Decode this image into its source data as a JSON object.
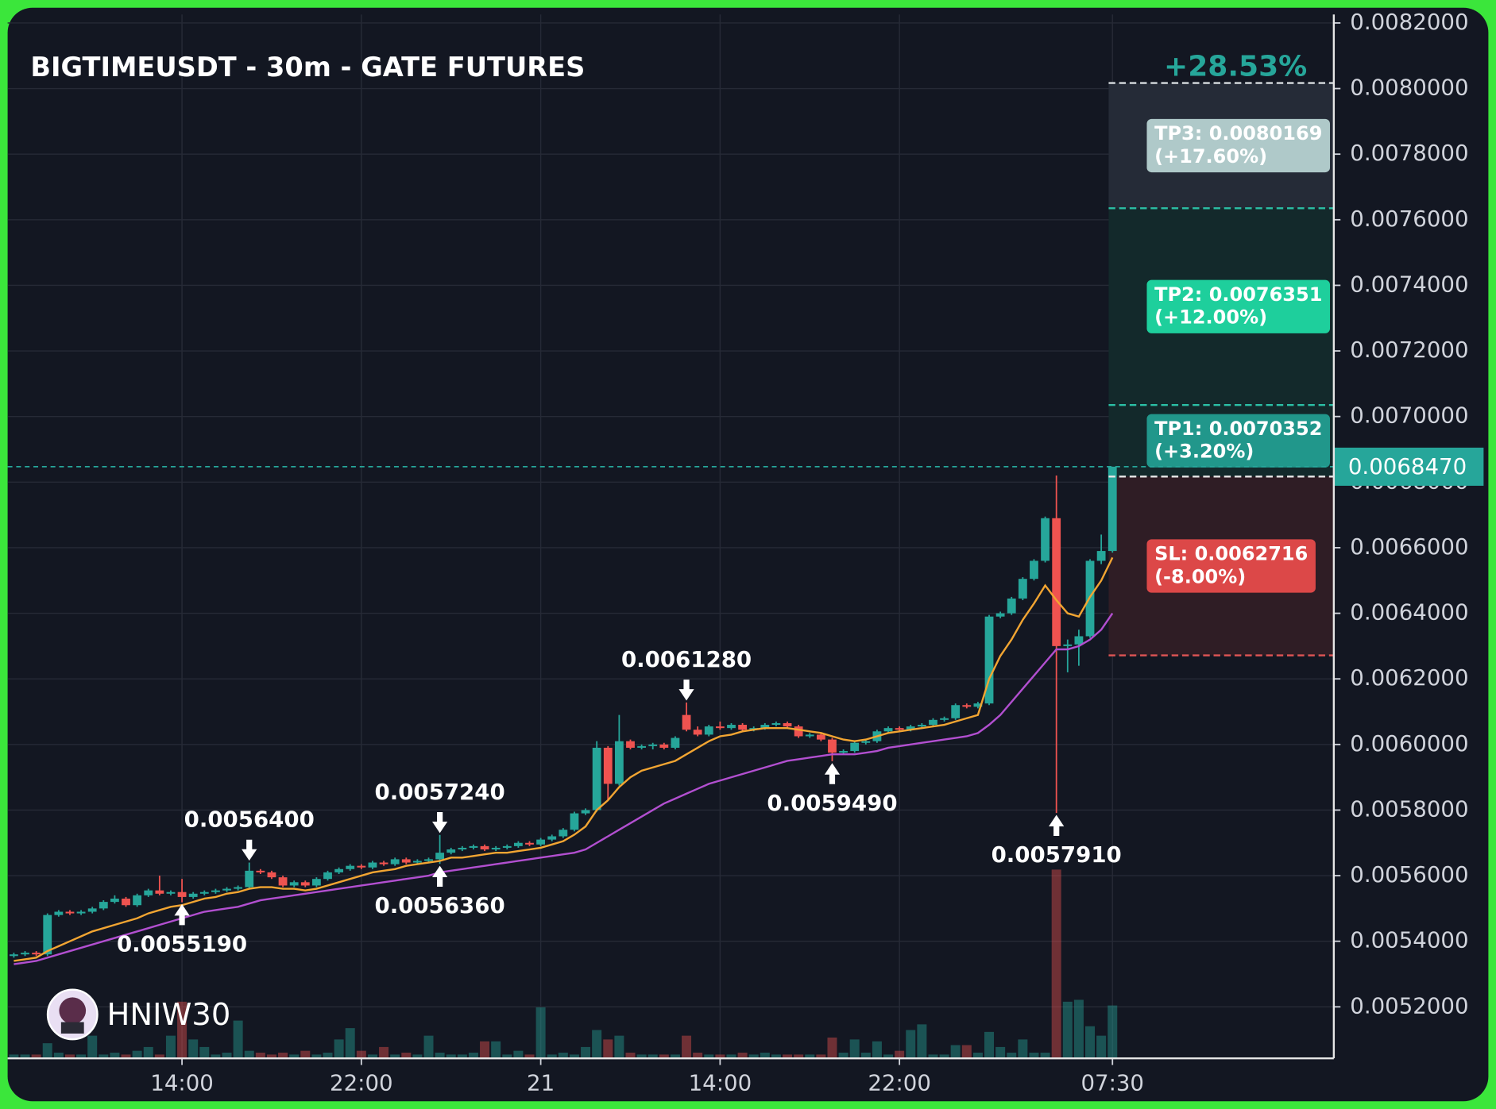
{
  "chart_data": {
    "type": "candlestick",
    "title": "BIGTIMEUSDT - 30m - GATE FUTURES",
    "watermark": "HNIW30",
    "categories": [
      null,
      null,
      null,
      null,
      null,
      null,
      null,
      null,
      null,
      null,
      null,
      null,
      null,
      null,
      null,
      "14:00",
      null,
      null,
      null,
      null,
      null,
      null,
      null,
      null,
      null,
      null,
      null,
      null,
      null,
      null,
      null,
      "22:00",
      null,
      null,
      null,
      null,
      null,
      null,
      null,
      null,
      null,
      null,
      null,
      null,
      null,
      null,
      null,
      "21",
      null,
      null,
      null,
      null,
      null,
      null,
      null,
      null,
      null,
      null,
      null,
      null,
      null,
      null,
      null,
      "14:00",
      null,
      null,
      null,
      null,
      null,
      null,
      null,
      null,
      null,
      null,
      null,
      null,
      null,
      null,
      null,
      "22:00",
      null,
      null,
      null,
      null,
      null,
      null,
      null,
      null,
      null,
      null,
      null,
      null,
      null,
      null,
      null,
      null,
      null,
      null,
      "07:30"
    ],
    "ohlc": [
      [
        0.005355,
        0.005365,
        0.00535,
        0.00536
      ],
      [
        0.00536,
        0.00537,
        0.005355,
        0.005365
      ],
      [
        0.005365,
        0.00537,
        0.005355,
        0.00536
      ],
      [
        0.00536,
        0.005485,
        0.005355,
        0.00548
      ],
      [
        0.00548,
        0.005495,
        0.005475,
        0.00549
      ],
      [
        0.00549,
        0.005495,
        0.00548,
        0.005485
      ],
      [
        0.005485,
        0.005495,
        0.00548,
        0.00549
      ],
      [
        0.00549,
        0.005505,
        0.005485,
        0.0055
      ],
      [
        0.0055,
        0.005525,
        0.005495,
        0.00552
      ],
      [
        0.00552,
        0.00554,
        0.005515,
        0.00553
      ],
      [
        0.00553,
        0.005535,
        0.005505,
        0.00551
      ],
      [
        0.00551,
        0.005545,
        0.005505,
        0.00554
      ],
      [
        0.00554,
        0.00556,
        0.005535,
        0.005555
      ],
      [
        0.005555,
        0.0056,
        0.00554,
        0.005545
      ],
      [
        0.005545,
        0.005555,
        0.00554,
        0.00555
      ],
      [
        0.00555,
        0.00559,
        0.005519,
        0.005535
      ],
      [
        0.005535,
        0.00555,
        0.00553,
        0.005545
      ],
      [
        0.005545,
        0.005555,
        0.00554,
        0.00555
      ],
      [
        0.00555,
        0.00556,
        0.005545,
        0.005555
      ],
      [
        0.005555,
        0.005565,
        0.00555,
        0.00556
      ],
      [
        0.00556,
        0.00557,
        0.005555,
        0.005565
      ],
      [
        0.005565,
        0.00564,
        0.00556,
        0.005615
      ],
      [
        0.005615,
        0.00562,
        0.005605,
        0.00561
      ],
      [
        0.00561,
        0.005615,
        0.00559,
        0.005595
      ],
      [
        0.005595,
        0.0056,
        0.005565,
        0.00557
      ],
      [
        0.00557,
        0.005585,
        0.005565,
        0.00558
      ],
      [
        0.00558,
        0.005585,
        0.005565,
        0.00557
      ],
      [
        0.00557,
        0.005595,
        0.005565,
        0.00559
      ],
      [
        0.00559,
        0.005615,
        0.005585,
        0.00561
      ],
      [
        0.00561,
        0.005625,
        0.005605,
        0.00562
      ],
      [
        0.00562,
        0.005635,
        0.005615,
        0.00563
      ],
      [
        0.00563,
        0.005635,
        0.00562,
        0.005625
      ],
      [
        0.005625,
        0.005645,
        0.00562,
        0.00564
      ],
      [
        0.00564,
        0.005645,
        0.00563,
        0.005635
      ],
      [
        0.005635,
        0.005655,
        0.00563,
        0.00565
      ],
      [
        0.00565,
        0.005655,
        0.005635,
        0.00564
      ],
      [
        0.00564,
        0.00565,
        0.005635,
        0.005645
      ],
      [
        0.005645,
        0.005655,
        0.00564,
        0.00565
      ],
      [
        0.00565,
        0.005724,
        0.005636,
        0.00567
      ],
      [
        0.00567,
        0.005685,
        0.005665,
        0.00568
      ],
      [
        0.00568,
        0.00569,
        0.005675,
        0.005685
      ],
      [
        0.005685,
        0.005695,
        0.00568,
        0.00569
      ],
      [
        0.00569,
        0.005695,
        0.005675,
        0.00568
      ],
      [
        0.00568,
        0.00569,
        0.005675,
        0.005685
      ],
      [
        0.005685,
        0.005695,
        0.00568,
        0.00569
      ],
      [
        0.00569,
        0.005705,
        0.005685,
        0.0057
      ],
      [
        0.0057,
        0.005705,
        0.00569,
        0.005695
      ],
      [
        0.005695,
        0.005715,
        0.00569,
        0.00571
      ],
      [
        0.00571,
        0.005725,
        0.005705,
        0.00572
      ],
      [
        0.00572,
        0.005745,
        0.005715,
        0.00574
      ],
      [
        0.00574,
        0.005795,
        0.005735,
        0.00579
      ],
      [
        0.00579,
        0.005805,
        0.005785,
        0.0058
      ],
      [
        0.0058,
        0.00601,
        0.005795,
        0.00599
      ],
      [
        0.00599,
        0.005995,
        0.00583,
        0.00588
      ],
      [
        0.00588,
        0.00609,
        0.005875,
        0.00601
      ],
      [
        0.00601,
        0.006015,
        0.005985,
        0.00599
      ],
      [
        0.00599,
        0.006,
        0.005985,
        0.005995
      ],
      [
        0.005995,
        0.006005,
        0.005985,
        0.006
      ],
      [
        0.006,
        0.006005,
        0.005985,
        0.00599
      ],
      [
        0.00599,
        0.006025,
        0.005985,
        0.00602
      ],
      [
        0.00609,
        0.006128,
        0.00604,
        0.006045
      ],
      [
        0.006045,
        0.006055,
        0.006025,
        0.00603
      ],
      [
        0.00603,
        0.00606,
        0.006025,
        0.006055
      ],
      [
        0.006055,
        0.00607,
        0.006045,
        0.00605
      ],
      [
        0.00605,
        0.006065,
        0.006045,
        0.00606
      ],
      [
        0.00606,
        0.006065,
        0.00604,
        0.006045
      ],
      [
        0.006045,
        0.006055,
        0.00604,
        0.00605
      ],
      [
        0.00605,
        0.006065,
        0.006045,
        0.00606
      ],
      [
        0.00606,
        0.00607,
        0.006055,
        0.006065
      ],
      [
        0.006065,
        0.00607,
        0.00605,
        0.006055
      ],
      [
        0.006055,
        0.00606,
        0.00602,
        0.006025
      ],
      [
        0.006025,
        0.006035,
        0.00602,
        0.00603
      ],
      [
        0.00603,
        0.006035,
        0.00601,
        0.006015
      ],
      [
        0.006015,
        0.00602,
        0.005949,
        0.005975
      ],
      [
        0.005975,
        0.005985,
        0.00597,
        0.00598
      ],
      [
        0.00598,
        0.00601,
        0.005975,
        0.006005
      ],
      [
        0.006005,
        0.006015,
        0.006,
        0.00601
      ],
      [
        0.00601,
        0.006045,
        0.006005,
        0.00604
      ],
      [
        0.00604,
        0.006055,
        0.006035,
        0.00605
      ],
      [
        0.00605,
        0.006055,
        0.00604,
        0.006045
      ],
      [
        0.006045,
        0.00606,
        0.00604,
        0.006055
      ],
      [
        0.006055,
        0.006065,
        0.00605,
        0.00606
      ],
      [
        0.00606,
        0.00608,
        0.006055,
        0.006075
      ],
      [
        0.006075,
        0.006085,
        0.00607,
        0.00608
      ],
      [
        0.00608,
        0.006125,
        0.006075,
        0.00612
      ],
      [
        0.00612,
        0.006125,
        0.00611,
        0.006115
      ],
      [
        0.006115,
        0.00613,
        0.00611,
        0.006125
      ],
      [
        0.006125,
        0.006395,
        0.00612,
        0.00639
      ],
      [
        0.00639,
        0.006405,
        0.006385,
        0.0064
      ],
      [
        0.0064,
        0.00645,
        0.006395,
        0.006445
      ],
      [
        0.006445,
        0.00651,
        0.00644,
        0.006505
      ],
      [
        0.006505,
        0.006565,
        0.0065,
        0.00656
      ],
      [
        0.00656,
        0.006695,
        0.006555,
        0.00669
      ],
      [
        0.00669,
        0.00682,
        0.005791,
        0.0063
      ],
      [
        0.0063,
        0.00632,
        0.00622,
        0.006305
      ],
      [
        0.006305,
        0.00635,
        0.00624,
        0.00633
      ],
      [
        0.00633,
        0.006565,
        0.006325,
        0.00656
      ],
      [
        0.00656,
        0.00664,
        0.00655,
        0.00659
      ],
      [
        0.00659,
        0.006847,
        0.006585,
        0.006847
      ]
    ],
    "volumes": [
      2,
      2,
      2,
      8,
      3,
      2,
      2,
      12,
      2,
      3,
      2,
      4,
      6,
      2,
      12,
      30,
      10,
      6,
      2,
      3,
      20,
      4,
      3,
      2,
      3,
      2,
      4,
      2,
      3,
      10,
      16,
      4,
      2,
      6,
      2,
      3,
      2,
      12,
      3,
      2,
      2,
      3,
      9,
      9,
      2,
      4,
      2,
      27,
      2,
      3,
      2,
      6,
      15,
      10,
      12,
      3,
      2,
      2,
      2,
      2,
      12,
      3,
      2,
      2,
      2,
      3,
      2,
      3,
      2,
      2,
      2,
      2,
      2,
      11,
      3,
      10,
      3,
      9,
      2,
      4,
      15,
      18,
      2,
      2,
      7,
      7,
      3,
      14,
      6,
      3,
      10,
      3,
      3,
      100,
      30,
      31,
      17,
      12,
      28
    ],
    "up_color": "#26a69a",
    "down_color": "#ef5350",
    "ma_lines": [
      {
        "color": "#f2a532",
        "values": [
          0.00534,
          0.005345,
          0.00535,
          0.00537,
          0.005385,
          0.0054,
          0.005415,
          0.00543,
          0.00544,
          0.00545,
          0.00546,
          0.00547,
          0.005485,
          0.005495,
          0.005505,
          0.00551,
          0.00552,
          0.00553,
          0.005535,
          0.005545,
          0.00555,
          0.00556,
          0.005565,
          0.005565,
          0.00556,
          0.00556,
          0.005555,
          0.00556,
          0.00557,
          0.00558,
          0.00559,
          0.0056,
          0.00561,
          0.005615,
          0.00562,
          0.00563,
          0.005635,
          0.00564,
          0.005645,
          0.005655,
          0.005655,
          0.00566,
          0.005665,
          0.00567,
          0.00567,
          0.005675,
          0.00568,
          0.005685,
          0.005695,
          0.005705,
          0.005725,
          0.00575,
          0.0058,
          0.00583,
          0.00587,
          0.0059,
          0.00592,
          0.00593,
          0.00594,
          0.00595,
          0.00597,
          0.00599,
          0.00601,
          0.006025,
          0.00603,
          0.00604,
          0.006045,
          0.00605,
          0.00605,
          0.00605,
          0.006045,
          0.00604,
          0.006035,
          0.006025,
          0.006015,
          0.00601,
          0.006015,
          0.006025,
          0.006035,
          0.00604,
          0.006045,
          0.00605,
          0.006055,
          0.00606,
          0.00607,
          0.00608,
          0.00609,
          0.0062,
          0.00627,
          0.00632,
          0.00638,
          0.00643,
          0.006485,
          0.00644,
          0.0064,
          0.00639,
          0.00645,
          0.0065,
          0.00657
        ]
      },
      {
        "color": "#b24fd0",
        "values": [
          0.00533,
          0.005335,
          0.00534,
          0.00535,
          0.00536,
          0.00537,
          0.00538,
          0.00539,
          0.0054,
          0.00541,
          0.00542,
          0.00543,
          0.00544,
          0.00545,
          0.00546,
          0.00547,
          0.00548,
          0.00549,
          0.005495,
          0.0055,
          0.005505,
          0.005515,
          0.005525,
          0.00553,
          0.005535,
          0.00554,
          0.005545,
          0.00555,
          0.005555,
          0.00556,
          0.005565,
          0.00557,
          0.005575,
          0.00558,
          0.005585,
          0.00559,
          0.005595,
          0.0056,
          0.00561,
          0.005615,
          0.00562,
          0.005625,
          0.00563,
          0.005635,
          0.00564,
          0.005645,
          0.00565,
          0.005655,
          0.00566,
          0.005665,
          0.00567,
          0.00568,
          0.0057,
          0.00572,
          0.00574,
          0.00576,
          0.00578,
          0.0058,
          0.00582,
          0.005835,
          0.00585,
          0.005865,
          0.00588,
          0.00589,
          0.0059,
          0.00591,
          0.00592,
          0.00593,
          0.00594,
          0.00595,
          0.005955,
          0.00596,
          0.005965,
          0.00597,
          0.00597,
          0.00597,
          0.005975,
          0.00598,
          0.00599,
          0.005995,
          0.006,
          0.006005,
          0.00601,
          0.006015,
          0.00602,
          0.006025,
          0.006035,
          0.00606,
          0.00609,
          0.00613,
          0.00617,
          0.00621,
          0.00625,
          0.00629,
          0.00629,
          0.0063,
          0.00632,
          0.00635,
          0.0064
        ]
      }
    ],
    "ylim": [
      0.005043,
      0.008226
    ],
    "yticks": [
      {
        "value": 0.0052,
        "label": "0.0052000"
      },
      {
        "value": 0.0054,
        "label": "0.0054000"
      },
      {
        "value": 0.0056,
        "label": "0.0056000"
      },
      {
        "value": 0.0058,
        "label": "0.0058000"
      },
      {
        "value": 0.006,
        "label": "0.0060000"
      },
      {
        "value": 0.0062,
        "label": "0.0062000"
      },
      {
        "value": 0.0064,
        "label": "0.0064000"
      },
      {
        "value": 0.0066,
        "label": "0.0066000"
      },
      {
        "value": 0.0068,
        "label": "0.0068000"
      },
      {
        "value": 0.007,
        "label": "0.0070000"
      },
      {
        "value": 0.0072,
        "label": "0.0072000"
      },
      {
        "value": 0.0074,
        "label": "0.0074000"
      },
      {
        "value": 0.0076,
        "label": "0.0076000"
      },
      {
        "value": 0.0078,
        "label": "0.0078000"
      },
      {
        "value": 0.008,
        "label": "0.0080000"
      },
      {
        "value": 0.0082,
        "label": "0.0082000"
      }
    ],
    "grid": true,
    "last_price": {
      "value": 0.006847,
      "label": "0.0068470"
    },
    "annotations": [
      {
        "candle": 21,
        "value": 0.00564,
        "label": "0.0056400",
        "position": "above"
      },
      {
        "candle": 15,
        "value": 0.005519,
        "label": "0.0055190",
        "position": "below"
      },
      {
        "candle": 38,
        "value": 0.005724,
        "label": "0.0057240",
        "position": "above"
      },
      {
        "candle": 38,
        "value": 0.005636,
        "label": "0.0056360",
        "position": "below"
      },
      {
        "candle": 60,
        "value": 0.006128,
        "label": "0.0061280",
        "position": "above"
      },
      {
        "candle": 73,
        "value": 0.005949,
        "label": "0.0059490",
        "position": "below"
      },
      {
        "candle": 93,
        "value": 0.005791,
        "label": "0.0057910",
        "position": "below"
      }
    ],
    "position": {
      "total_change": "+28.53%",
      "entry": 0.006817,
      "take_profits": [
        {
          "value": 0.0080169,
          "label": "TP3: 0.0080169",
          "change": "(+17.60%)",
          "color": "#afc9c9",
          "line_color": "#d8dde0"
        },
        {
          "value": 0.0076351,
          "label": "TP2: 0.0076351",
          "change": "(+12.00%)",
          "color": "#1ecf9c",
          "line_color": "#2bbfa5"
        },
        {
          "value": 0.0070352,
          "label": "TP1: 0.0070352",
          "change": "(+3.20%)",
          "color": "#21978b",
          "line_color": "#2bbfa5"
        }
      ],
      "stop_loss": {
        "value": 0.0062716,
        "label": "SL: 0.0062716",
        "change": "(-8.00%)",
        "color": "#dc4848",
        "line_color": "#e05555"
      }
    }
  }
}
